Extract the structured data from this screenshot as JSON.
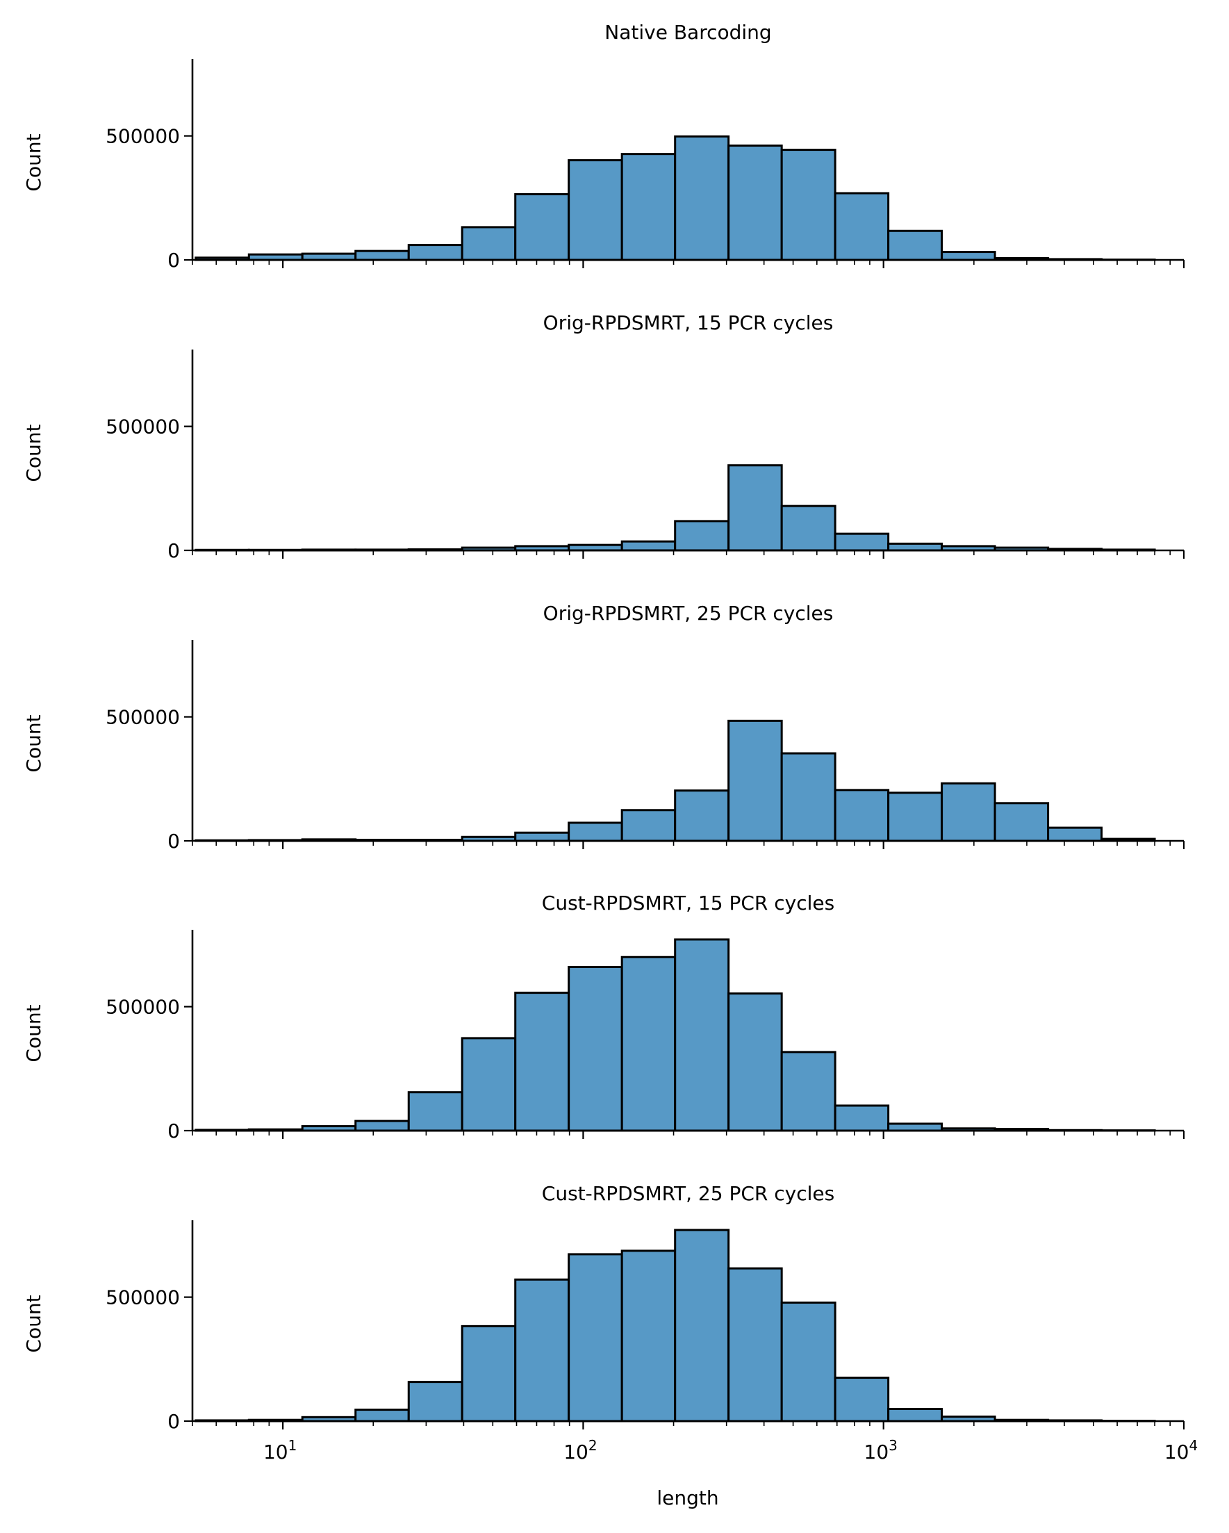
{
  "chart_data": {
    "type": "bar",
    "subtype": "histogram",
    "layout": "5 stacked panels, shared x axis",
    "xscale": "log",
    "xlabel": "length",
    "ylabel": "Count",
    "xlim": [
      5,
      10000
    ],
    "ylim": [
      0,
      810000
    ],
    "x_ticks": [
      {
        "value": 10,
        "base": "10",
        "exp": "1"
      },
      {
        "value": 100,
        "base": "10",
        "exp": "2"
      },
      {
        "value": 1000,
        "base": "10",
        "exp": "3"
      },
      {
        "value": 10000,
        "base": "10",
        "exp": "4"
      }
    ],
    "y_ticks": [
      {
        "value": 0,
        "label": "0"
      },
      {
        "value": 500000,
        "label": "500000"
      }
    ],
    "bar_color": "#5799c6",
    "edge_color": "#000000",
    "bin_edges_log10": [
      0.71,
      0.887,
      1.065,
      1.242,
      1.419,
      1.597,
      1.774,
      1.952,
      2.129,
      2.306,
      2.484,
      2.661,
      2.839,
      3.016,
      3.194,
      3.371,
      3.548,
      3.726,
      3.903
    ],
    "panels": [
      {
        "title": "Native Barcoding",
        "values": [
          9000,
          22000,
          25000,
          36000,
          60000,
          132000,
          265000,
          402000,
          427000,
          498000,
          461000,
          444000,
          269000,
          117000,
          32000,
          7000,
          3000,
          1000
        ]
      },
      {
        "title": "Orig-RPDSMRT, 15 PCR cycles",
        "values": [
          2000,
          2000,
          3000,
          3000,
          4000,
          11000,
          17000,
          22000,
          36000,
          118000,
          343000,
          179000,
          67000,
          27000,
          17000,
          11000,
          6000,
          3000
        ]
      },
      {
        "title": "Orig-RPDSMRT, 25 PCR cycles",
        "values": [
          2000,
          3000,
          6000,
          4000,
          4000,
          16000,
          33000,
          73000,
          124000,
          203000,
          484000,
          353000,
          205000,
          194000,
          232000,
          152000,
          53000,
          8000
        ]
      },
      {
        "title": "Cust-RPDSMRT, 15 PCR cycles",
        "values": [
          3000,
          5000,
          18000,
          39000,
          155000,
          373000,
          556000,
          660000,
          700000,
          771000,
          553000,
          317000,
          101000,
          28000,
          9000,
          7000,
          2000,
          1000
        ]
      },
      {
        "title": "Cust-RPDSMRT, 25 PCR cycles",
        "values": [
          3000,
          5000,
          16000,
          46000,
          158000,
          383000,
          571000,
          673000,
          687000,
          771000,
          616000,
          478000,
          175000,
          49000,
          18000,
          5000,
          3000,
          1000
        ]
      }
    ]
  }
}
